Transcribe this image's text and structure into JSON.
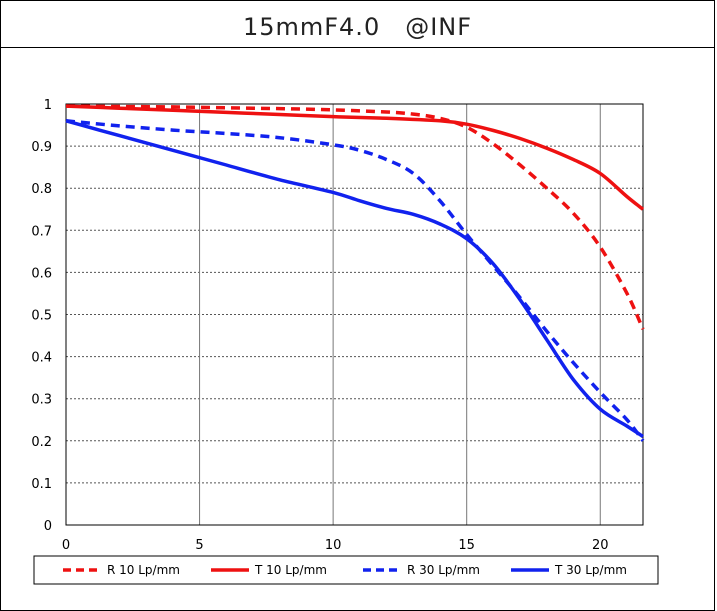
{
  "chart_data": {
    "type": "line",
    "title": "15mmF4.0　@INF",
    "xlabel": "",
    "ylabel": "",
    "xlim": [
      0,
      21.6
    ],
    "ylim": [
      0,
      1
    ],
    "xticks": [
      "0",
      "5",
      "10",
      "15",
      "20"
    ],
    "xtick_values": [
      0,
      5,
      10,
      15,
      20
    ],
    "yticks": [
      "0",
      "0.1",
      "0.2",
      "0.3",
      "0.4",
      "0.5",
      "0.6",
      "0.7",
      "0.8",
      "0.9",
      "1"
    ],
    "ytick_values": [
      0,
      0.1,
      0.2,
      0.3,
      0.4,
      0.5,
      0.6,
      0.7,
      0.8,
      0.9,
      1
    ],
    "grid": true,
    "legend_position": "bottom",
    "series": [
      {
        "name": "R 10 Lp/mm",
        "color": "#ee1111",
        "dashed": true,
        "x": [
          0,
          2,
          4,
          6,
          8,
          10,
          12,
          13,
          14,
          15,
          16,
          17,
          18,
          19,
          20,
          21,
          21.6
        ],
        "y": [
          0.995,
          0.994,
          0.993,
          0.991,
          0.989,
          0.986,
          0.981,
          0.976,
          0.966,
          0.945,
          0.905,
          0.855,
          0.8,
          0.74,
          0.66,
          0.55,
          0.465
        ]
      },
      {
        "name": "T 10 Lp/mm",
        "color": "#ee1111",
        "dashed": false,
        "x": [
          0,
          2,
          4,
          6,
          8,
          10,
          12,
          14,
          15,
          16,
          17,
          18,
          19,
          20,
          21,
          21.6
        ],
        "y": [
          0.995,
          0.99,
          0.985,
          0.98,
          0.975,
          0.97,
          0.966,
          0.96,
          0.952,
          0.937,
          0.918,
          0.895,
          0.868,
          0.835,
          0.78,
          0.75
        ]
      },
      {
        "name": "R 30 Lp/mm",
        "color": "#1122ee",
        "dashed": true,
        "x": [
          0,
          2,
          4,
          6,
          8,
          10,
          11,
          12,
          13,
          14,
          15,
          16,
          17,
          18,
          19,
          20,
          21,
          21.6
        ],
        "y": [
          0.96,
          0.948,
          0.938,
          0.93,
          0.92,
          0.903,
          0.89,
          0.868,
          0.835,
          0.77,
          0.69,
          0.615,
          0.54,
          0.46,
          0.385,
          0.315,
          0.25,
          0.2
        ]
      },
      {
        "name": "T 30 Lp/mm",
        "color": "#1122ee",
        "dashed": false,
        "x": [
          0,
          2,
          4,
          6,
          8,
          10,
          11,
          12,
          13,
          14,
          15,
          16,
          17,
          18,
          19,
          20,
          21,
          21.6
        ],
        "y": [
          0.96,
          0.925,
          0.89,
          0.855,
          0.82,
          0.79,
          0.77,
          0.752,
          0.738,
          0.715,
          0.68,
          0.62,
          0.535,
          0.44,
          0.345,
          0.275,
          0.235,
          0.21
        ]
      }
    ]
  }
}
